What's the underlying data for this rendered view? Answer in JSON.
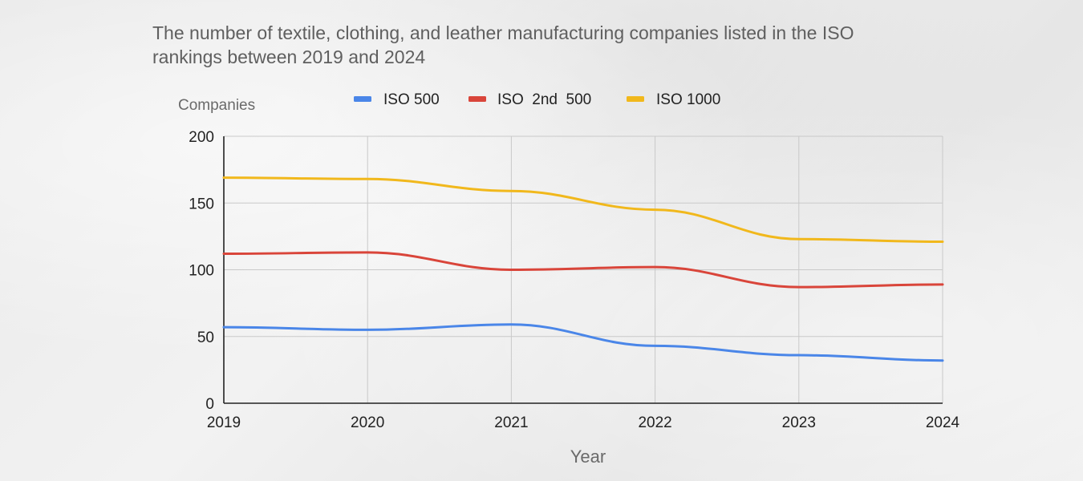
{
  "chart_data": {
    "type": "line",
    "title": "The number of textile, clothing, and leather manufacturing companies listed in the ISO rankings between 2019 and 2024",
    "xlabel": "Year",
    "ylabel": "Companies",
    "categories": [
      "2019",
      "2020",
      "2021",
      "2022",
      "2023",
      "2024"
    ],
    "ylim": [
      0,
      200
    ],
    "yticks": [
      "0",
      "50",
      "100",
      "150",
      "200"
    ],
    "grid": true,
    "legend_position": "top",
    "series": [
      {
        "name": "ISO 500",
        "color": "#4a86e8",
        "values": [
          57,
          55,
          59,
          43,
          36,
          32
        ]
      },
      {
        "name": "ISO  2nd  500",
        "color": "#d9453a",
        "values": [
          112,
          113,
          100,
          102,
          87,
          89
        ]
      },
      {
        "name": "ISO 1000",
        "color": "#f1b81c",
        "values": [
          169,
          168,
          159,
          145,
          123,
          121
        ]
      }
    ]
  }
}
